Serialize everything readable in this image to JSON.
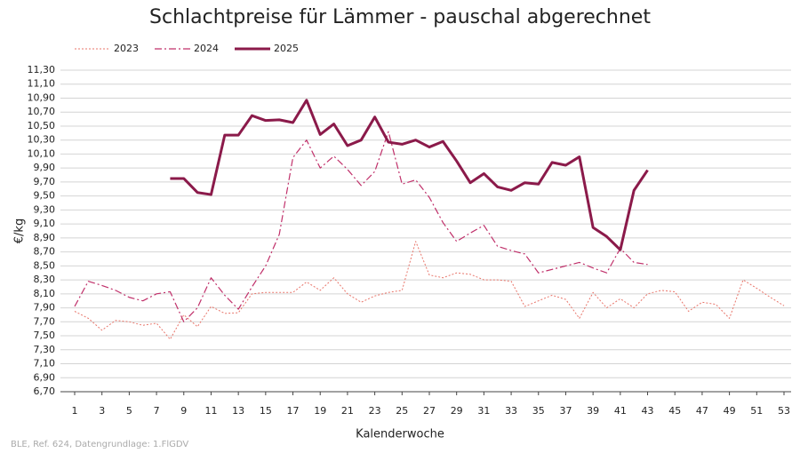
{
  "chart_data": {
    "type": "line",
    "title": "Schlachtpreise für Lämmer - pauschal abgerechnet",
    "y_label": "€/kg",
    "x_label": "Kalenderwoche",
    "footer": "BLE, Ref. 624, Datengrundlage: 1.FlGDV",
    "grid": true,
    "x": [
      1,
      2,
      3,
      4,
      5,
      6,
      7,
      8,
      9,
      10,
      11,
      12,
      13,
      14,
      15,
      16,
      17,
      18,
      19,
      20,
      21,
      22,
      23,
      24,
      25,
      26,
      27,
      28,
      29,
      30,
      31,
      32,
      33,
      34,
      35,
      36,
      37,
      38,
      39,
      40,
      41,
      42,
      43,
      44,
      45,
      46,
      47,
      48,
      49,
      50,
      51,
      52,
      53
    ],
    "xlim": [
      1,
      53
    ],
    "xticks": [
      1,
      3,
      5,
      7,
      9,
      11,
      13,
      15,
      17,
      19,
      21,
      23,
      25,
      27,
      29,
      31,
      33,
      35,
      37,
      39,
      41,
      43,
      45,
      47,
      49,
      51,
      53
    ],
    "ylim": [
      6.7,
      11.3
    ],
    "yticks": [
      {
        "value": 6.7,
        "label": "6,70"
      },
      {
        "value": 6.9,
        "label": "6,90"
      },
      {
        "value": 7.1,
        "label": "7,10"
      },
      {
        "value": 7.3,
        "label": "7,30"
      },
      {
        "value": 7.5,
        "label": "7,50"
      },
      {
        "value": 7.7,
        "label": "7,70"
      },
      {
        "value": 7.9,
        "label": "7,90"
      },
      {
        "value": 8.1,
        "label": "8,10"
      },
      {
        "value": 8.3,
        "label": "8,30"
      },
      {
        "value": 8.5,
        "label": "8,50"
      },
      {
        "value": 8.7,
        "label": "8,70"
      },
      {
        "value": 8.9,
        "label": "8,90"
      },
      {
        "value": 9.1,
        "label": "9,10"
      },
      {
        "value": 9.3,
        "label": "9,30"
      },
      {
        "value": 9.5,
        "label": "9,50"
      },
      {
        "value": 9.7,
        "label": "9,70"
      },
      {
        "value": 9.9,
        "label": "9,90"
      },
      {
        "value": 10.1,
        "label": "10,10"
      },
      {
        "value": 10.3,
        "label": "10,30"
      },
      {
        "value": 10.5,
        "label": "10,50"
      },
      {
        "value": 10.7,
        "label": "10,70"
      },
      {
        "value": 10.9,
        "label": "10,90"
      },
      {
        "value": 11.1,
        "label": "11,10"
      },
      {
        "value": 11.3,
        "label": "11,30"
      }
    ],
    "series": [
      {
        "name": "2023",
        "color": "#e8756a",
        "style": "dotted",
        "values": [
          7.85,
          7.75,
          7.58,
          7.72,
          7.7,
          7.65,
          7.68,
          7.45,
          7.8,
          7.63,
          7.92,
          7.82,
          7.83,
          8.1,
          8.12,
          8.12,
          8.12,
          8.27,
          8.15,
          8.33,
          8.1,
          7.98,
          8.07,
          8.12,
          8.15,
          8.85,
          8.37,
          8.33,
          8.4,
          8.38,
          8.3,
          8.3,
          8.28,
          7.92,
          8.0,
          8.08,
          8.02,
          7.75,
          8.12,
          7.9,
          8.03,
          7.9,
          8.1,
          8.15,
          8.13,
          7.85,
          7.98,
          7.95,
          7.75,
          8.3,
          8.18,
          8.05,
          7.93
        ]
      },
      {
        "name": "2024",
        "color": "#c0306a",
        "style": "dashdot",
        "values": [
          7.92,
          8.28,
          8.22,
          8.15,
          8.05,
          8.0,
          8.1,
          8.13,
          7.7,
          7.9,
          8.33,
          8.08,
          7.88,
          8.2,
          8.5,
          8.95,
          10.05,
          10.3,
          9.9,
          10.07,
          9.88,
          9.65,
          9.85,
          10.42,
          9.67,
          9.73,
          9.48,
          9.12,
          8.85,
          8.97,
          9.08,
          8.78,
          8.72,
          8.67,
          8.4,
          8.45,
          8.5,
          8.55,
          8.47,
          8.4,
          8.75,
          8.55,
          8.52,
          null,
          null,
          null,
          null,
          null,
          null,
          null,
          null,
          null,
          null
        ]
      },
      {
        "name": "2025",
        "color": "#8b1a4a",
        "style": "solid",
        "values": [
          null,
          null,
          null,
          null,
          null,
          null,
          null,
          9.75,
          9.75,
          9.55,
          9.52,
          10.37,
          10.37,
          10.65,
          10.58,
          10.59,
          10.55,
          10.87,
          10.38,
          10.53,
          10.22,
          10.3,
          10.63,
          10.27,
          10.24,
          10.3,
          10.2,
          10.28,
          10.0,
          9.69,
          9.82,
          9.63,
          9.58,
          9.69,
          9.67,
          9.98,
          9.94,
          10.06,
          9.05,
          8.92,
          8.73,
          9.58,
          9.87,
          null,
          null,
          null,
          null,
          null,
          null,
          null,
          null,
          null,
          null
        ]
      }
    ]
  }
}
